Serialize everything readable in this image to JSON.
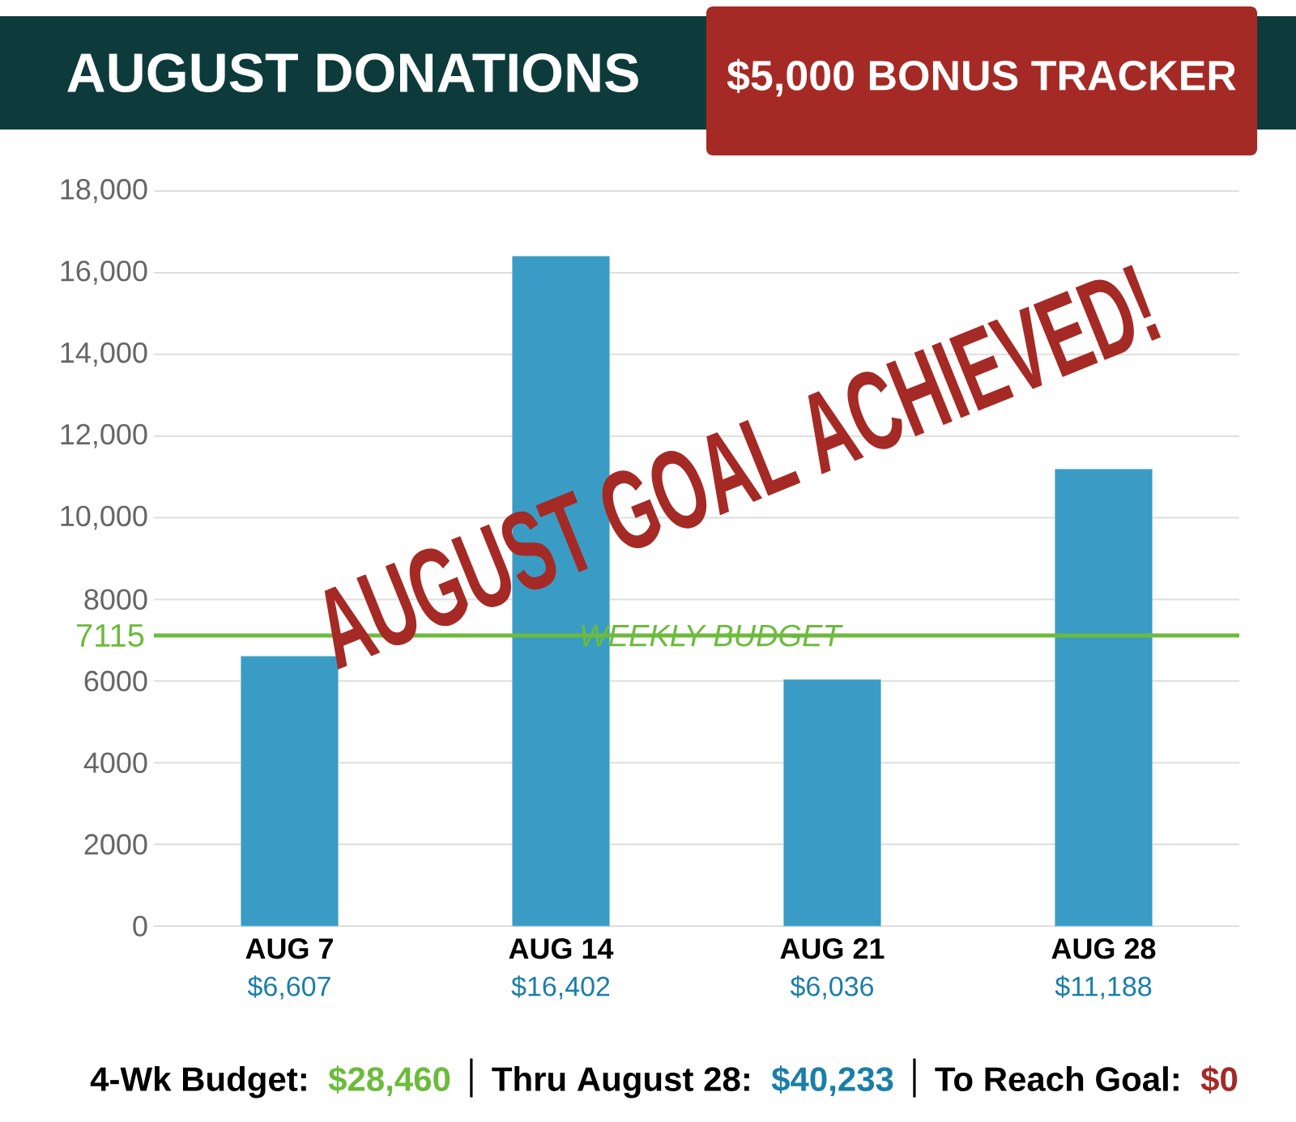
{
  "chart_data": {
    "type": "bar",
    "title": "AUGUST DONATIONS",
    "subtitle": "$5,000 BONUS TRACKER",
    "categories": [
      "AUG 7",
      "AUG 14",
      "AUG 21",
      "AUG 28"
    ],
    "values": [
      6607,
      16402,
      6036,
      11188
    ],
    "value_labels": [
      "$6,607",
      "$16,402",
      "$6,036",
      "$11,188"
    ],
    "color": "#3a9cc4",
    "ylim": [
      0,
      18000
    ],
    "yticks": [
      0,
      2000,
      4000,
      6000,
      8000,
      {
        "value": 10000,
        "label": "10,000"
      },
      {
        "value": 12000,
        "label": "12,000"
      },
      {
        "value": 14000,
        "label": "14,000"
      },
      {
        "value": 16000,
        "label": "16,000"
      },
      {
        "value": 18000,
        "label": "18,000"
      }
    ],
    "grid": "y",
    "ref_lines": [
      {
        "axis": "y",
        "value": 7115,
        "label": "WEEKLY BUDGET",
        "color": "#6cbb3c"
      }
    ],
    "annotations": [
      "7115",
      "AUGUST GOAL ACHIEVED!",
      "4-Wk Budget:",
      "$28,460",
      "Thru August 28:",
      "$40,233",
      "To Reach Goal:",
      "$0"
    ]
  }
}
